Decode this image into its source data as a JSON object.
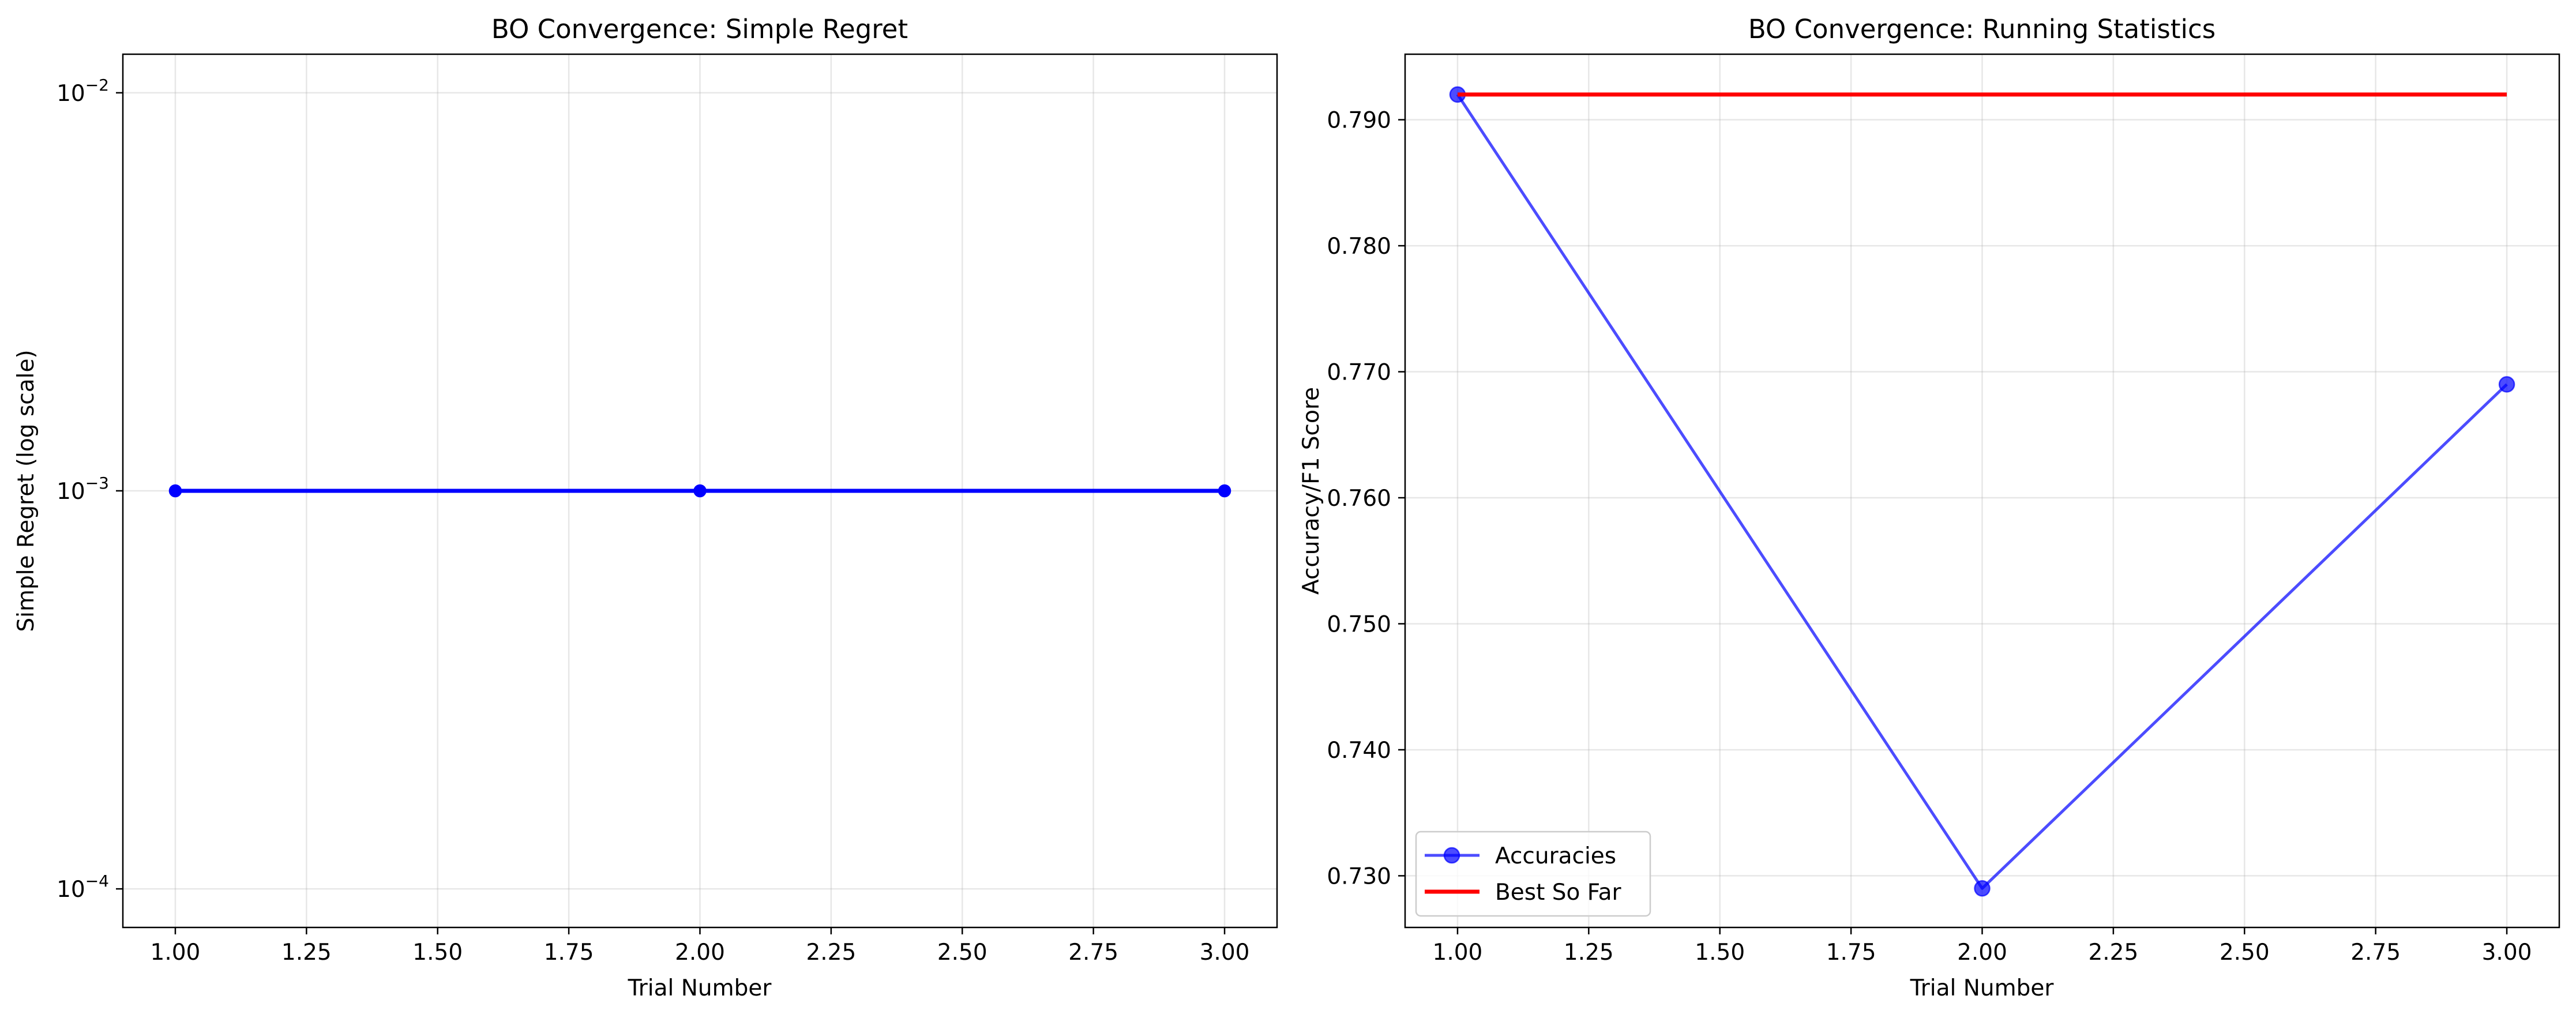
{
  "chart_data": [
    {
      "type": "line",
      "title": "BO Convergence: Simple Regret",
      "xlabel": "Trial Number",
      "ylabel": "Simple Regret (log scale)",
      "yscale": "log",
      "xlim": [
        0.9,
        3.1
      ],
      "ylim": [
        8e-05,
        0.0125
      ],
      "x_ticks": [
        "1.00",
        "1.25",
        "1.50",
        "1.75",
        "2.00",
        "2.25",
        "2.50",
        "2.75",
        "3.00"
      ],
      "y_ticks": [
        {
          "base": "10",
          "exp": "−4"
        },
        {
          "base": "10",
          "exp": "−3"
        },
        {
          "base": "10",
          "exp": "−2"
        }
      ],
      "grid": true,
      "series": [
        {
          "x": [
            1,
            2,
            3
          ],
          "y": [
            0.001,
            0.001,
            0.001
          ],
          "color": "#0000ff",
          "marker": "circle"
        }
      ]
    },
    {
      "type": "line",
      "title": "BO Convergence: Running Statistics",
      "xlabel": "Trial Number",
      "ylabel": "Accuracy/F1 Score",
      "xlim": [
        0.9,
        3.1
      ],
      "ylim": [
        0.7259,
        0.7952
      ],
      "x_ticks": [
        "1.00",
        "1.25",
        "1.50",
        "1.75",
        "2.00",
        "2.25",
        "2.50",
        "2.75",
        "3.00"
      ],
      "y_ticks": [
        "0.730",
        "0.740",
        "0.750",
        "0.760",
        "0.770",
        "0.780",
        "0.790"
      ],
      "grid": true,
      "legend": "lower-left",
      "series": [
        {
          "name": "Accuracies",
          "x": [
            1,
            2,
            3
          ],
          "y": [
            0.792,
            0.729,
            0.769
          ],
          "color": "#0000ff",
          "marker": "circle"
        },
        {
          "name": "Best So Far",
          "x": [
            1,
            2,
            3
          ],
          "y": [
            0.792,
            0.792,
            0.792
          ],
          "color": "#ff0000",
          "marker": "none"
        }
      ]
    }
  ]
}
